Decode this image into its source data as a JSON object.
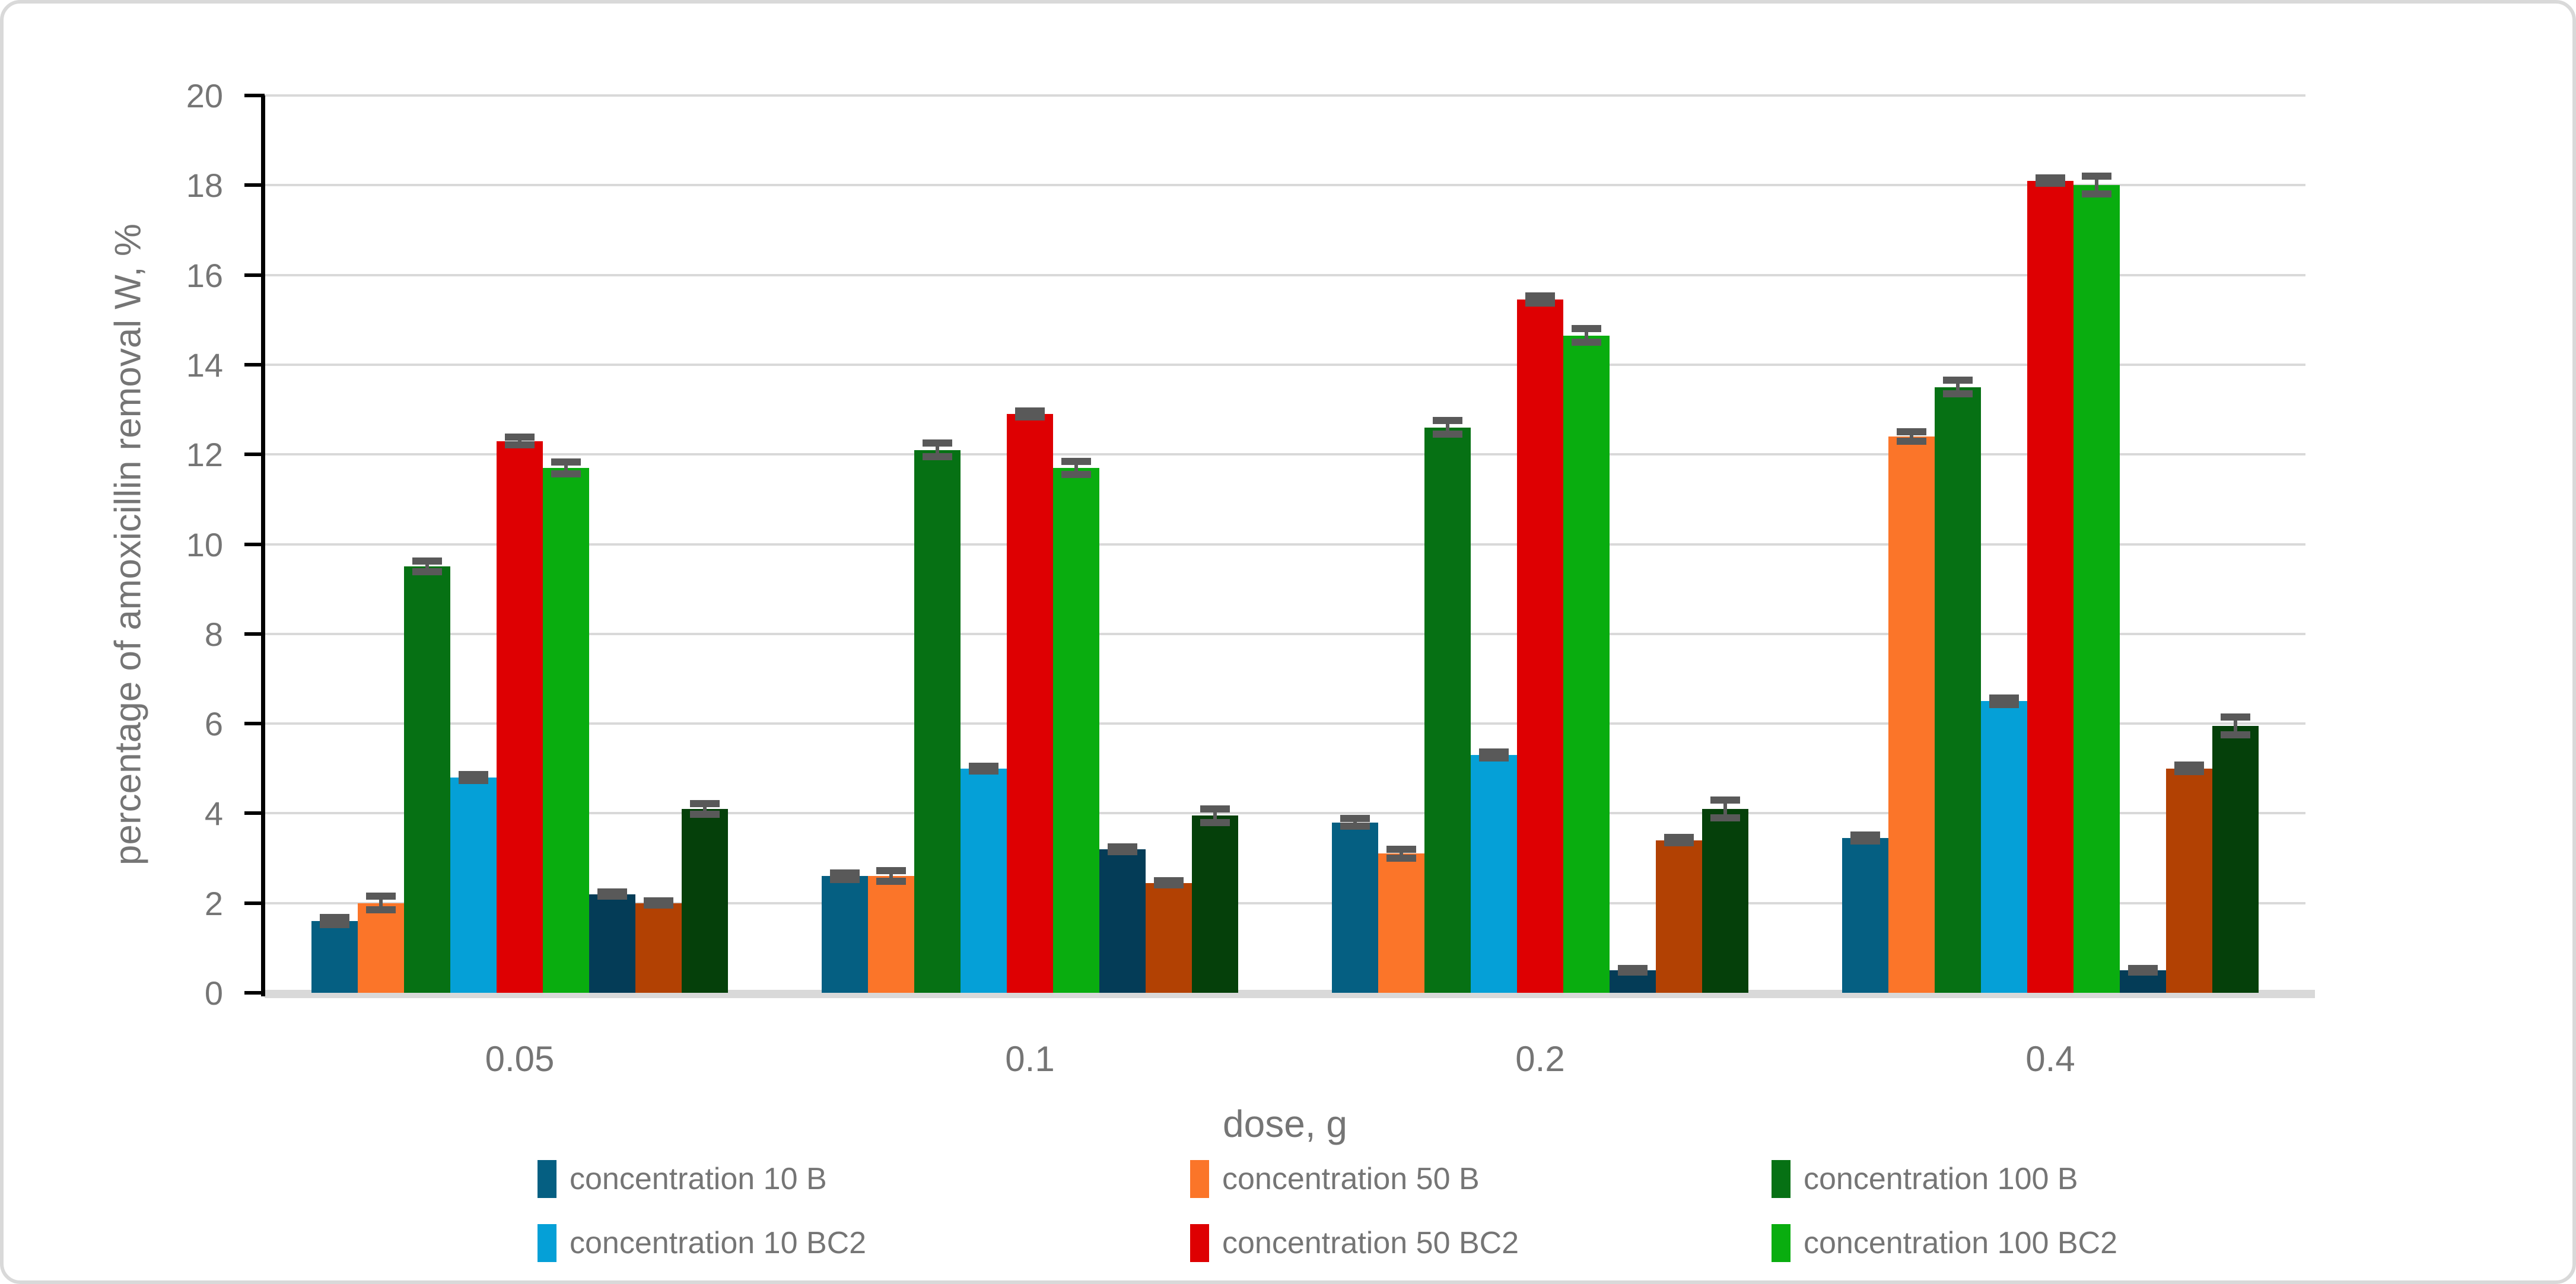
{
  "chart_data": {
    "type": "bar",
    "title": "",
    "xlabel": "dose, g",
    "ylabel": "percentage of amoxicillin removal W, %",
    "categories": [
      "0.05",
      "0.1",
      "0.2",
      "0.4"
    ],
    "axis": {
      "ymin": 0,
      "ymax": 20,
      "tick_step": 2,
      "ytick_labels": [
        "0",
        "2",
        "4",
        "6",
        "8",
        "10",
        "12",
        "14",
        "16",
        "18",
        "20"
      ],
      "grid": true
    },
    "legend_position": "bottom",
    "legend_rows": 2,
    "legend_columns": 3,
    "series": [
      {
        "name": "concentration 10 B",
        "color": "#055F82",
        "in_legend": true,
        "values": [
          1.6,
          2.6,
          3.8,
          3.45
        ],
        "errors": [
          0.08,
          0.07,
          0.08,
          0.07
        ]
      },
      {
        "name": "concentration 50 B",
        "color": "#FB7529",
        "in_legend": true,
        "values": [
          2.0,
          2.6,
          3.1,
          12.4
        ],
        "errors": [
          0.15,
          0.12,
          0.1,
          0.1
        ]
      },
      {
        "name": "concentration 100 B",
        "color": "#067114",
        "in_legend": true,
        "values": [
          9.5,
          12.1,
          12.6,
          13.5
        ],
        "errors": [
          0.12,
          0.15,
          0.15,
          0.15
        ]
      },
      {
        "name": "concentration 10 BC2",
        "color": "#05A0D7",
        "in_legend": true,
        "values": [
          4.8,
          5.0,
          5.3,
          6.5
        ],
        "errors": [
          0.07,
          0.05,
          0.07,
          0.07
        ]
      },
      {
        "name": "concentration 50 BC2",
        "color": "#DE0002",
        "in_legend": true,
        "values": [
          12.3,
          12.9,
          15.45,
          18.1
        ],
        "errors": [
          0.08,
          0.07,
          0.08,
          0.06
        ]
      },
      {
        "name": "concentration 100 BC2",
        "color": "#09AD0F",
        "in_legend": true,
        "values": [
          11.7,
          11.7,
          14.65,
          18.0
        ],
        "errors": [
          0.13,
          0.15,
          0.15,
          0.2
        ]
      },
      {
        "name": "",
        "color": "#043C57",
        "in_legend": false,
        "values": [
          2.2,
          3.2,
          0.5,
          0.5
        ],
        "errors": [
          0.05,
          0.05,
          0.04,
          0.04
        ]
      },
      {
        "name": "",
        "color": "#B24103",
        "in_legend": false,
        "values": [
          2.0,
          2.45,
          3.4,
          5.0
        ],
        "errors": [
          0.05,
          0.05,
          0.06,
          0.07
        ]
      },
      {
        "name": "",
        "color": "#05400A",
        "in_legend": false,
        "values": [
          4.1,
          3.95,
          4.1,
          5.95
        ],
        "errors": [
          0.12,
          0.15,
          0.2,
          0.2
        ]
      }
    ],
    "style_colors": {
      "gridline": "#D9D9D9",
      "axis_line": "#000000",
      "text": "#757575",
      "error_bar": "#595959",
      "canvas_border": "#D9D9D9",
      "background": "#FFFFFF"
    }
  }
}
